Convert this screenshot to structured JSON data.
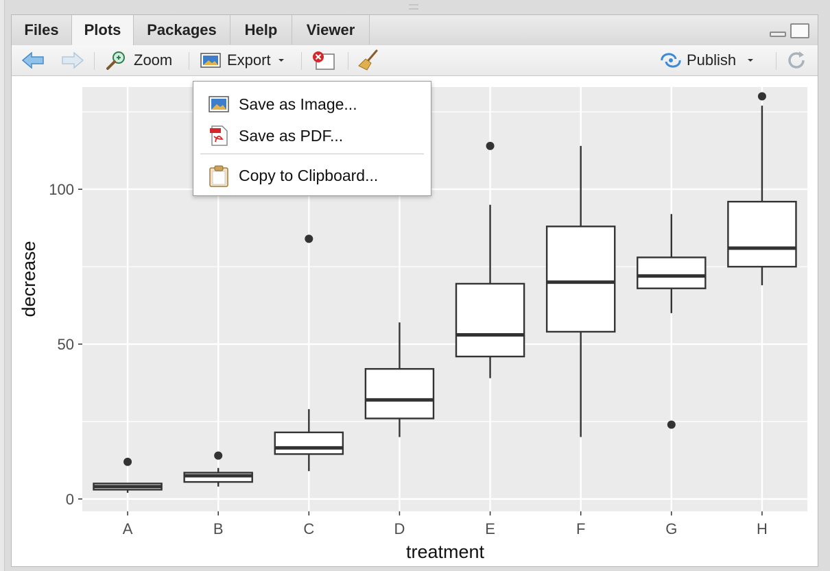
{
  "tabs": [
    {
      "label": "Files",
      "active": false
    },
    {
      "label": "Plots",
      "active": true
    },
    {
      "label": "Packages",
      "active": false
    },
    {
      "label": "Help",
      "active": false
    },
    {
      "label": "Viewer",
      "active": false
    }
  ],
  "toolbar": {
    "zoom_label": "Zoom",
    "export_label": "Export",
    "publish_label": "Publish"
  },
  "export_menu": {
    "items": [
      {
        "label": "Save as Image...",
        "icon": "image-icon"
      },
      {
        "label": "Save as PDF...",
        "icon": "pdf-icon"
      },
      {
        "label": "Copy to Clipboard...",
        "icon": "clipboard-icon"
      }
    ]
  },
  "colors": {
    "panel_bg": "#ebebeb",
    "gridline": "#ffffff",
    "box_stroke": "#333333",
    "box_fill": "#ffffff"
  },
  "chart_data": {
    "type": "boxplot",
    "title": "",
    "xlabel": "treatment",
    "ylabel": "decrease",
    "ylim": [
      -4,
      133
    ],
    "yticks": [
      0,
      50,
      100
    ],
    "grid": true,
    "categories": [
      "A",
      "B",
      "C",
      "D",
      "E",
      "F",
      "G",
      "H"
    ],
    "boxes": [
      {
        "category": "A",
        "min": 2,
        "q1": 3,
        "median": 4,
        "q3": 5,
        "max": 5,
        "outliers": [
          12
        ]
      },
      {
        "category": "B",
        "min": 4,
        "q1": 5.5,
        "median": 7.5,
        "q3": 8.5,
        "max": 10,
        "outliers": [
          14
        ]
      },
      {
        "category": "C",
        "min": 9,
        "q1": 14.5,
        "median": 16.5,
        "q3": 21.5,
        "max": 29,
        "outliers": [
          84
        ]
      },
      {
        "category": "D",
        "min": 20,
        "q1": 26,
        "median": 32,
        "q3": 42,
        "max": 57,
        "outliers": []
      },
      {
        "category": "E",
        "min": 39,
        "q1": 46,
        "median": 53,
        "q3": 69.5,
        "max": 95,
        "outliers": [
          114
        ]
      },
      {
        "category": "F",
        "min": 20,
        "q1": 54,
        "median": 70,
        "q3": 88,
        "max": 114,
        "outliers": []
      },
      {
        "category": "G",
        "min": 60,
        "q1": 68,
        "median": 72,
        "q3": 78,
        "max": 92,
        "outliers": [
          24
        ]
      },
      {
        "category": "H",
        "min": 69,
        "q1": 75,
        "median": 81,
        "q3": 96,
        "max": 127,
        "outliers": [
          130
        ]
      }
    ]
  }
}
